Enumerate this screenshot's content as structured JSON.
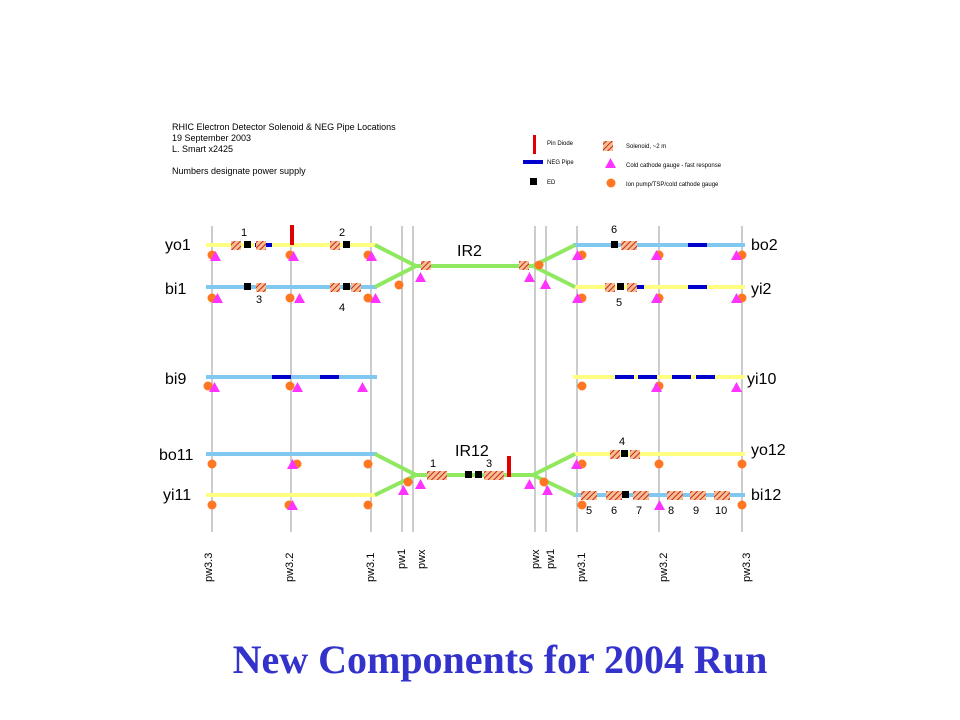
{
  "info": {
    "title": "RHIC Electron Detector Solenoid & NEG Pipe Locations",
    "date": "19 September 2003",
    "author": "L. Smart x2425",
    "note": "Numbers designate power supply"
  },
  "legend": {
    "pin_diode": "Pin Diode",
    "neg_pipe": "NEG Pipe",
    "ed": "ED",
    "solenoid": "Solenoid, ~2 m",
    "cold_cathode": "Cold cathode gauge - fast response",
    "ion_pump": "Ion pump/TSP/cold cathode gauge"
  },
  "beamlines": {
    "yo1": "yo1",
    "bi1": "bi1",
    "bi9": "bi9",
    "bo11": "bo11",
    "yi11": "yi11",
    "bo2": "bo2",
    "yi2": "yi2",
    "yi10": "yi10",
    "yo12": "yo12",
    "bi12": "bi12"
  },
  "ir": {
    "ir2": "IR2",
    "ir12": "IR12"
  },
  "supplies": [
    "1",
    "2",
    "3",
    "4",
    "6",
    "5",
    "1",
    "3",
    "4",
    "5",
    "6",
    "7",
    "8",
    "9",
    "10"
  ],
  "stations": [
    "pw3.3",
    "pw3.2",
    "pw3.1",
    "pw1",
    "pwx",
    "pwx",
    "pw1",
    "pw3.1",
    "pw3.2",
    "pw3.3"
  ],
  "colors": {
    "blue_ring": "#80c8f0",
    "yellow_ring": "#ffff80",
    "crossing": "#90e860",
    "neg_pipe": "#0000cc",
    "pin_diode": "#e00000",
    "gauge": "#ff33ff",
    "pump": "#ff7722",
    "station_line": "#999999",
    "footer": "#3333cc"
  },
  "footer": "New Components for 2004 Run"
}
